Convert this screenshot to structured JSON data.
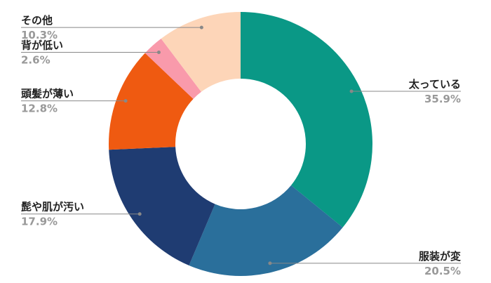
{
  "chart_data": {
    "type": "donut",
    "categories": [
      "太っている",
      "服装が変",
      "髭や肌が汚い",
      "頭髪が薄い",
      "背が低い",
      "その他"
    ],
    "values": [
      35.9,
      20.5,
      17.9,
      12.8,
      2.6,
      10.3
    ],
    "value_labels": [
      "35.9%",
      "20.5%",
      "17.9%",
      "12.8%",
      "2.6%",
      "10.3%"
    ],
    "colors": [
      "#0a9886",
      "#2a6f9b",
      "#1f3c72",
      "#ef5a11",
      "#f99aab",
      "#fdd5b8"
    ]
  }
}
